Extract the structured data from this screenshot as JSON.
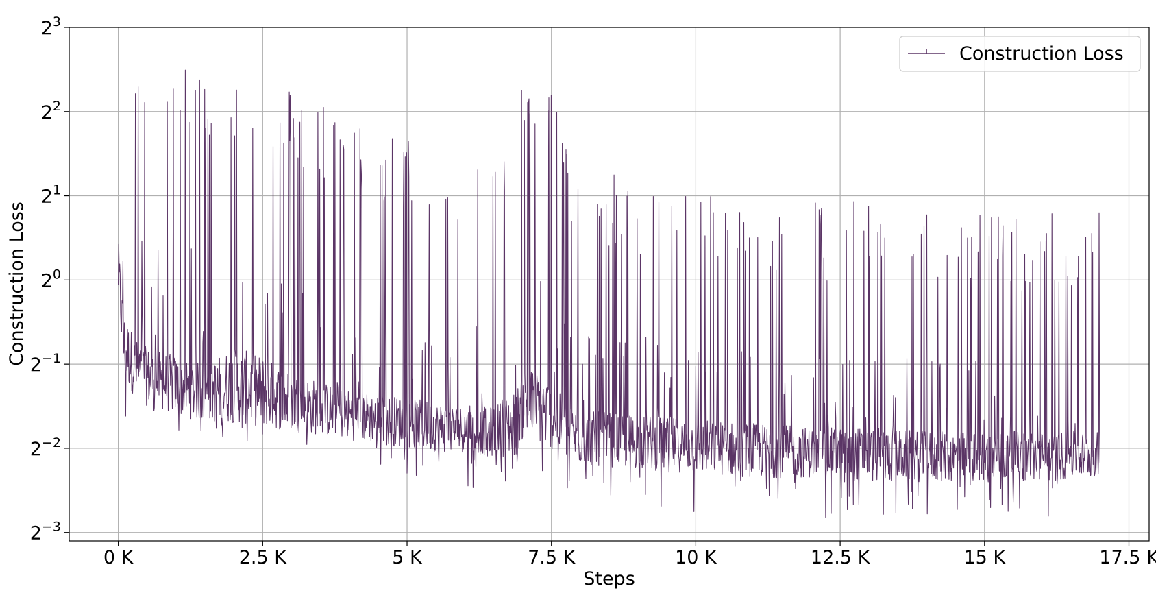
{
  "chart_data": {
    "type": "line",
    "title": "",
    "xlabel": "Steps",
    "ylabel": "Construction Loss",
    "xlim": [
      -850,
      17850
    ],
    "ylim_log2": [
      -3.1,
      3.0
    ],
    "yscale": "log2",
    "grid": true,
    "legend_position": "top-right",
    "x_ticks": [
      {
        "value": 0,
        "label": "0 K"
      },
      {
        "value": 2500,
        "label": "2.5 K"
      },
      {
        "value": 5000,
        "label": "5 K"
      },
      {
        "value": 7500,
        "label": "7.5 K"
      },
      {
        "value": 10000,
        "label": "10 K"
      },
      {
        "value": 12500,
        "label": "12.5 K"
      },
      {
        "value": 15000,
        "label": "15 K"
      },
      {
        "value": 17500,
        "label": "17.5 K"
      }
    ],
    "y_ticks": [
      {
        "exp": 3,
        "base": "2",
        "sup": "3"
      },
      {
        "exp": 2,
        "base": "2",
        "sup": "2"
      },
      {
        "exp": 1,
        "base": "2",
        "sup": "1"
      },
      {
        "exp": 0,
        "base": "2",
        "sup": "0"
      },
      {
        "exp": -1,
        "base": "2",
        "sup": "−1"
      },
      {
        "exp": -2,
        "base": "2",
        "sup": "−2"
      },
      {
        "exp": -3,
        "base": "2",
        "sup": "−3"
      }
    ],
    "series": [
      {
        "name": "Construction Loss",
        "color": "#5b3566",
        "x_range": [
          0,
          17000
        ],
        "envelope_log2": {
          "x": [
            0,
            100,
            300,
            500,
            1000,
            1500,
            2000,
            2500,
            3000,
            3500,
            4000,
            4500,
            5000,
            5500,
            6000,
            6500,
            6900,
            7000,
            7300,
            7600,
            7800,
            8000,
            9000,
            10000,
            11000,
            12000,
            13000,
            14000,
            15000,
            16000,
            17000
          ],
          "peak_max": [
            2.55,
            2.4,
            2.55,
            2.6,
            2.5,
            2.5,
            2.45,
            2.4,
            2.3,
            2.2,
            1.9,
            1.8,
            1.7,
            1.6,
            1.55,
            1.5,
            1.55,
            2.4,
            2.4,
            2.2,
            1.5,
            1.4,
            1.2,
            1.1,
            1.0,
            1.0,
            1.0,
            1.1,
            0.9,
            0.8,
            0.9
          ],
          "peak_min": [
            2.0,
            1.6,
            1.8,
            1.9,
            1.8,
            1.7,
            1.6,
            1.5,
            1.4,
            1.2,
            1.0,
            0.9,
            0.8,
            0.7,
            0.7,
            0.6,
            0.6,
            1.8,
            1.8,
            1.6,
            0.6,
            0.5,
            0.3,
            0.2,
            0.1,
            0.0,
            -0.1,
            0.0,
            -0.1,
            -0.2,
            -0.2
          ],
          "base_high": [
            0.5,
            -0.4,
            -0.7,
            -0.8,
            -0.9,
            -1.0,
            -0.8,
            -0.9,
            -1.1,
            -1.2,
            -1.3,
            -1.35,
            -1.4,
            -1.45,
            -1.5,
            -1.5,
            -1.3,
            -1.0,
            -1.1,
            -1.3,
            -1.5,
            -1.55,
            -1.6,
            -1.65,
            -1.7,
            -1.75,
            -1.75,
            -1.8,
            -1.8,
            -1.8,
            -1.8
          ],
          "base_low": [
            -0.3,
            -1.2,
            -1.4,
            -1.5,
            -1.6,
            -1.7,
            -1.7,
            -1.75,
            -1.8,
            -1.85,
            -1.9,
            -1.95,
            -2.0,
            -2.05,
            -2.05,
            -2.1,
            -2.1,
            -1.9,
            -1.95,
            -2.05,
            -2.15,
            -2.2,
            -2.25,
            -2.3,
            -2.35,
            -2.35,
            -2.4,
            -2.4,
            -2.4,
            -2.4,
            -2.35
          ],
          "spike_low_min": [
            -1.3,
            -1.8,
            -1.8,
            -1.8,
            -1.8,
            -1.8,
            -1.9,
            -2.0,
            -2.0,
            -2.1,
            -2.2,
            -2.3,
            -2.3,
            -2.4,
            -2.5,
            -2.55,
            -2.6,
            -2.4,
            -2.4,
            -2.5,
            -2.6,
            -2.6,
            -2.7,
            -2.8,
            -2.85,
            -2.85,
            -2.85,
            -2.8,
            -2.85,
            -2.85,
            -2.75
          ]
        }
      }
    ]
  }
}
